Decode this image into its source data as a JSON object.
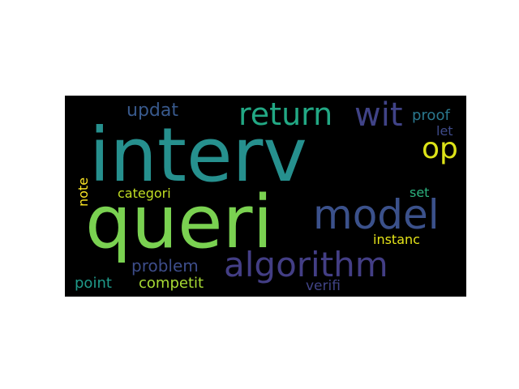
{
  "words": [
    {
      "text": "interv",
      "color": "#26908e"
    },
    {
      "text": "queri",
      "color": "#7ad151"
    },
    {
      "text": "model",
      "color": "#3b518b"
    },
    {
      "text": "algorithm",
      "color": "#433e85"
    },
    {
      "text": "return",
      "color": "#22a884"
    },
    {
      "text": "wit",
      "color": "#404387"
    },
    {
      "text": "op",
      "color": "#dde318"
    },
    {
      "text": "updat",
      "color": "#38598c"
    },
    {
      "text": "proof",
      "color": "#2a788e"
    },
    {
      "text": "let",
      "color": "#3e4a89"
    },
    {
      "text": "categori",
      "color": "#c2df23"
    },
    {
      "text": "note",
      "color": "#fde725"
    },
    {
      "text": "set",
      "color": "#2cb17e"
    },
    {
      "text": "problem",
      "color": "#3d4d8a"
    },
    {
      "text": "instanc",
      "color": "#e5e419"
    },
    {
      "text": "point",
      "color": "#1f9a8a"
    },
    {
      "text": "competit",
      "color": "#a8db34"
    },
    {
      "text": "verifi",
      "color": "#414487"
    }
  ]
}
